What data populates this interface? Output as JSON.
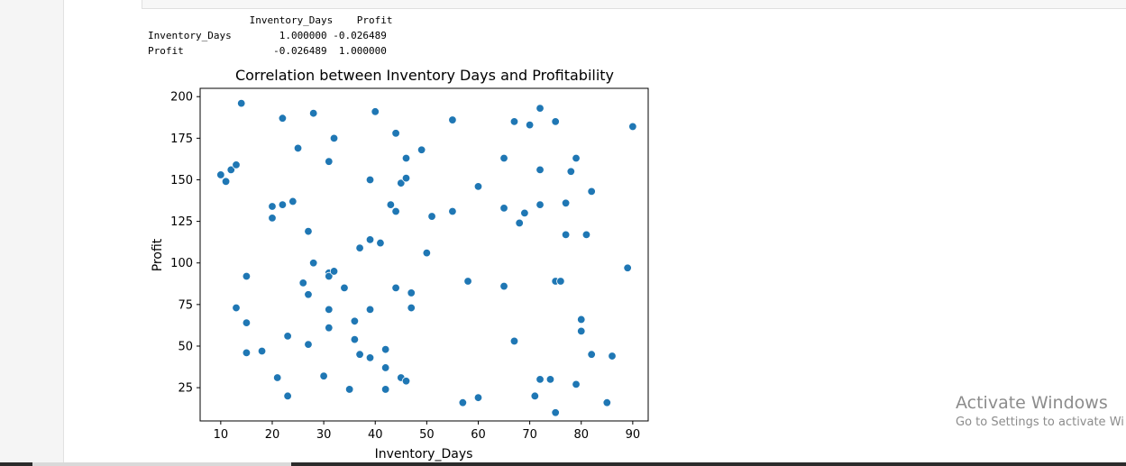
{
  "output_text": "                 Inventory_Days    Profit\nInventory_Days        1.000000 -0.026489\nProfit               -0.026489  1.000000",
  "watermark": {
    "title": "Activate Windows",
    "subtitle": "Go to Settings to activate Wi"
  },
  "chart_data": {
    "type": "scatter",
    "title": "Correlation between Inventory Days and Profitability",
    "xlabel": "Inventory_Days",
    "ylabel": "Profit",
    "xlim": [
      6,
      93
    ],
    "ylim": [
      5,
      205
    ],
    "xticks": [
      10,
      20,
      30,
      40,
      50,
      60,
      70,
      80,
      90
    ],
    "yticks": [
      25,
      50,
      75,
      100,
      125,
      150,
      175,
      200
    ],
    "grid": false,
    "marker_color": "#1f77b4",
    "points": [
      [
        10,
        153
      ],
      [
        11,
        149
      ],
      [
        12,
        156
      ],
      [
        13,
        159
      ],
      [
        13,
        73
      ],
      [
        14,
        196
      ],
      [
        15,
        92
      ],
      [
        15,
        64
      ],
      [
        15,
        46
      ],
      [
        18,
        47
      ],
      [
        20,
        134
      ],
      [
        20,
        127
      ],
      [
        21,
        31
      ],
      [
        22,
        187
      ],
      [
        22,
        135
      ],
      [
        23,
        56
      ],
      [
        23,
        20
      ],
      [
        24,
        137
      ],
      [
        25,
        169
      ],
      [
        26,
        88
      ],
      [
        27,
        119
      ],
      [
        27,
        81
      ],
      [
        27,
        51
      ],
      [
        28,
        190
      ],
      [
        28,
        100
      ],
      [
        30,
        32
      ],
      [
        31,
        161
      ],
      [
        31,
        94
      ],
      [
        31,
        92
      ],
      [
        31,
        72
      ],
      [
        31,
        61
      ],
      [
        32,
        175
      ],
      [
        32,
        95
      ],
      [
        34,
        85
      ],
      [
        35,
        24
      ],
      [
        36,
        65
      ],
      [
        36,
        54
      ],
      [
        37,
        109
      ],
      [
        37,
        45
      ],
      [
        39,
        150
      ],
      [
        39,
        114
      ],
      [
        39,
        72
      ],
      [
        39,
        43
      ],
      [
        40,
        191
      ],
      [
        41,
        112
      ],
      [
        42,
        48
      ],
      [
        42,
        37
      ],
      [
        42,
        24
      ],
      [
        43,
        135
      ],
      [
        44,
        178
      ],
      [
        44,
        131
      ],
      [
        44,
        85
      ],
      [
        45,
        148
      ],
      [
        45,
        31
      ],
      [
        46,
        163
      ],
      [
        46,
        151
      ],
      [
        46,
        29
      ],
      [
        47,
        82
      ],
      [
        47,
        73
      ],
      [
        49,
        168
      ],
      [
        50,
        106
      ],
      [
        51,
        128
      ],
      [
        55,
        186
      ],
      [
        55,
        131
      ],
      [
        57,
        16
      ],
      [
        58,
        89
      ],
      [
        60,
        146
      ],
      [
        60,
        19
      ],
      [
        65,
        163
      ],
      [
        65,
        133
      ],
      [
        65,
        86
      ],
      [
        67,
        185
      ],
      [
        67,
        53
      ],
      [
        68,
        124
      ],
      [
        69,
        130
      ],
      [
        70,
        183
      ],
      [
        71,
        20
      ],
      [
        72,
        193
      ],
      [
        72,
        156
      ],
      [
        72,
        135
      ],
      [
        72,
        30
      ],
      [
        74,
        30
      ],
      [
        75,
        185
      ],
      [
        75,
        89
      ],
      [
        75,
        10
      ],
      [
        76,
        89
      ],
      [
        77,
        136
      ],
      [
        77,
        117
      ],
      [
        78,
        155
      ],
      [
        79,
        163
      ],
      [
        79,
        27
      ],
      [
        80,
        66
      ],
      [
        80,
        59
      ],
      [
        81,
        117
      ],
      [
        82,
        143
      ],
      [
        82,
        45
      ],
      [
        85,
        16
      ],
      [
        86,
        44
      ],
      [
        89,
        97
      ],
      [
        90,
        182
      ]
    ]
  }
}
